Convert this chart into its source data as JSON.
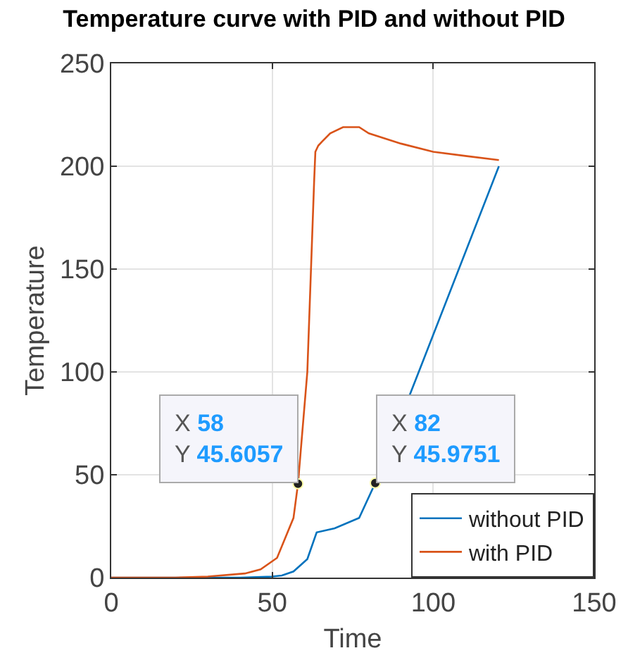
{
  "chart_data": {
    "type": "line",
    "title": "Temperature curve with PID and without PID",
    "xlabel": "Time",
    "ylabel": "Temperature",
    "xlim": [
      0,
      150
    ],
    "xticks": [
      0,
      50,
      100,
      150
    ],
    "ylim": [
      0,
      250
    ],
    "yticks": [
      0,
      50,
      100,
      150,
      200,
      250
    ],
    "grid": true,
    "legend": "bottom right",
    "marker": "none",
    "line_style": "solid",
    "series": [
      {
        "name": "without PID",
        "color": "#0072bd",
        "x": [
          0,
          20,
          40,
          50,
          53,
          56.6,
          60.9,
          63.8,
          69.4,
          77,
          82,
          97,
          120.4
        ],
        "values": [
          0,
          0,
          0,
          0.5,
          1,
          3,
          9,
          22,
          24,
          29,
          46,
          106,
          200
        ]
      },
      {
        "name": "with PID",
        "color": "#d95319",
        "x": [
          0,
          20,
          30,
          41.5,
          46.4,
          51.5,
          56.6,
          58,
          60.9,
          63,
          63.4,
          64.3,
          65.5,
          68,
          72,
          77,
          80,
          90,
          100,
          110,
          120.4
        ],
        "values": [
          0,
          0,
          0.5,
          2,
          4,
          9.6,
          29,
          45.6,
          100,
          192,
          207,
          210,
          212,
          216,
          219,
          219,
          216,
          211,
          207,
          205,
          203
        ]
      }
    ],
    "annotations": [
      {
        "text": "X 58\nY 45.6057",
        "x": 58,
        "y": 45.6057
      },
      {
        "text": "X 82\nY 45.9751",
        "x": 82,
        "y": 45.9751
      }
    ]
  }
}
